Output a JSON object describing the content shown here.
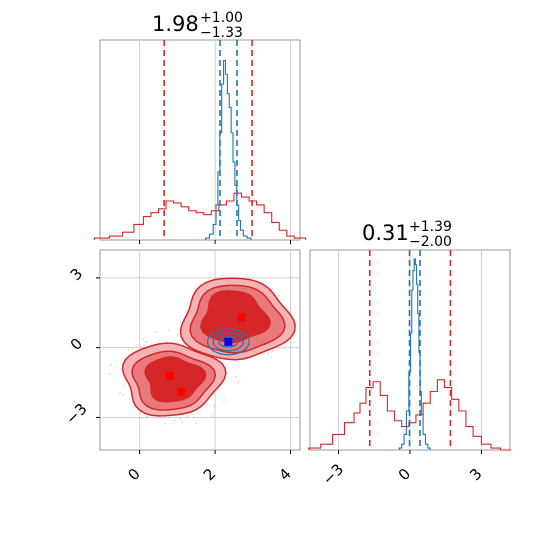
{
  "chart_data": {
    "type": "corner",
    "params": [
      {
        "median": 1.98,
        "err_plus": 1.0,
        "err_minus": 1.33,
        "median_label": "1.98",
        "plus_label": "+1.00",
        "minus_label": "−1.33"
      },
      {
        "median": 0.31,
        "err_plus": 1.39,
        "err_minus": 2.0,
        "median_label": "0.31",
        "plus_label": "+1.39",
        "minus_label": "−2.00"
      }
    ],
    "xlim_param1": [
      -1.05,
      4.25
    ],
    "xlim_param2": [
      -4.2,
      4.2
    ],
    "ylim_param2": [
      -4.4,
      4.2
    ],
    "ticks_param1": [
      0,
      2,
      4
    ],
    "ticks_param2": [
      -3,
      0,
      3
    ],
    "tick_labels_param1": [
      "0",
      "2",
      "4"
    ],
    "tick_labels_param2": [
      "−3",
      "0",
      "3"
    ],
    "grid": true,
    "red_sample": {
      "color": "#d62728",
      "quantile_lines_param1": [
        0.65,
        2.98
      ],
      "quantile_lines_param2": [
        -1.69,
        1.7
      ],
      "hist_param1_x": [
        -1.0,
        -0.6,
        -0.3,
        0.0,
        0.2,
        0.4,
        0.6,
        0.8,
        1.0,
        1.2,
        1.4,
        1.6,
        1.8,
        2.0,
        2.2,
        2.4,
        2.6,
        2.8,
        3.0,
        3.2,
        3.4,
        3.6,
        3.8,
        4.0,
        4.2
      ],
      "hist_param1_h": [
        0.01,
        0.02,
        0.04,
        0.08,
        0.12,
        0.14,
        0.16,
        0.2,
        0.19,
        0.17,
        0.15,
        0.14,
        0.13,
        0.15,
        0.18,
        0.2,
        0.24,
        0.22,
        0.2,
        0.18,
        0.14,
        0.09,
        0.05,
        0.02,
        0.01
      ],
      "hist_param2_x": [
        -4.0,
        -3.5,
        -3.0,
        -2.5,
        -2.2,
        -2.0,
        -1.7,
        -1.4,
        -1.1,
        -0.8,
        -0.5,
        -0.2,
        0.1,
        0.4,
        0.7,
        1.0,
        1.3,
        1.6,
        1.9,
        2.2,
        2.5,
        2.8,
        3.2,
        3.6,
        4.0
      ],
      "hist_param2_h": [
        0.01,
        0.03,
        0.08,
        0.14,
        0.19,
        0.24,
        0.32,
        0.35,
        0.28,
        0.2,
        0.15,
        0.12,
        0.14,
        0.18,
        0.24,
        0.3,
        0.36,
        0.32,
        0.26,
        0.2,
        0.12,
        0.07,
        0.03,
        0.01,
        0.0
      ],
      "markers": [
        {
          "x": 0.8,
          "y": -1.2
        },
        {
          "x": 1.1,
          "y": -1.9
        },
        {
          "x": 2.7,
          "y": 1.3
        }
      ]
    },
    "blue_sample": {
      "color": "#1f77b4",
      "quantile_lines_param1": [
        2.13,
        2.58
      ],
      "quantile_lines_param2": [
        -0.02,
        0.42
      ],
      "hist_param1_x": [
        1.8,
        1.9,
        2.0,
        2.05,
        2.1,
        2.15,
        2.2,
        2.25,
        2.3,
        2.35,
        2.4,
        2.45,
        2.5,
        2.55,
        2.6,
        2.65,
        2.7,
        2.8,
        2.9
      ],
      "hist_param1_h": [
        0.01,
        0.03,
        0.08,
        0.18,
        0.35,
        0.55,
        0.8,
        0.92,
        0.85,
        0.75,
        0.68,
        0.55,
        0.4,
        0.28,
        0.18,
        0.1,
        0.05,
        0.02,
        0.01
      ],
      "hist_param2_x": [
        -0.4,
        -0.3,
        -0.2,
        -0.1,
        0.0,
        0.05,
        0.1,
        0.15,
        0.2,
        0.25,
        0.3,
        0.35,
        0.4,
        0.45,
        0.5,
        0.6,
        0.7,
        0.8
      ],
      "hist_param2_h": [
        0.01,
        0.03,
        0.08,
        0.2,
        0.4,
        0.6,
        0.82,
        0.92,
        0.98,
        0.95,
        0.85,
        0.7,
        0.5,
        0.3,
        0.18,
        0.08,
        0.03,
        0.01
      ],
      "marker": {
        "x": 2.35,
        "y": 0.25
      }
    }
  }
}
